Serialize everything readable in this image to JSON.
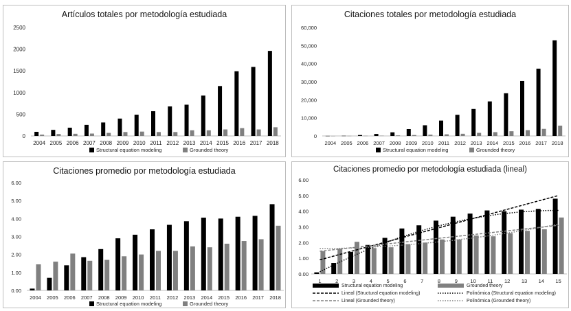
{
  "chart_data": [
    {
      "type": "bar",
      "title": "Artículos totales por metodología estudiada",
      "categories": [
        "2004",
        "2005",
        "2006",
        "2007",
        "2008",
        "2009",
        "2010",
        "2011",
        "2012",
        "2013",
        "2014",
        "2015",
        "2016",
        "2017",
        "2018"
      ],
      "series": [
        {
          "name": "Structural equation modeling",
          "color": "#000000",
          "values": [
            95,
            140,
            190,
            255,
            310,
            400,
            490,
            570,
            680,
            720,
            930,
            1150,
            1490,
            1590,
            1960
          ]
        },
        {
          "name": "Grounded theory",
          "color": "#808080",
          "values": [
            30,
            45,
            50,
            55,
            70,
            90,
            100,
            90,
            90,
            130,
            130,
            150,
            180,
            150,
            200
          ]
        }
      ],
      "ylim": [
        0,
        2500
      ],
      "yticks": [
        "0",
        "500",
        "1000",
        "1500",
        "2000",
        "2500"
      ],
      "legend": "bottom"
    },
    {
      "type": "bar",
      "title": "Citaciones totales por metodología estudiada",
      "categories": [
        "2004",
        "2005",
        "2006",
        "2007",
        "2008",
        "2009",
        "2010",
        "2011",
        "2012",
        "2013",
        "2014",
        "2015",
        "2016",
        "2017",
        "2018"
      ],
      "series": [
        {
          "name": "Structural equation modeling",
          "color": "#000000",
          "values": [
            50,
            100,
            500,
            1100,
            2000,
            3800,
            5900,
            8500,
            11700,
            14900,
            19100,
            23600,
            30400,
            37200,
            52900
          ]
        },
        {
          "name": "Grounded theory",
          "color": "#808080",
          "values": [
            30,
            70,
            100,
            150,
            300,
            500,
            700,
            900,
            1200,
            1700,
            2100,
            2600,
            3200,
            3900,
            5700
          ]
        }
      ],
      "ylim": [
        0,
        60000
      ],
      "yticks": [
        "0",
        "10,000",
        "20,000",
        "30,000",
        "40,000",
        "50,000",
        "60,000"
      ],
      "legend": "bottom"
    },
    {
      "type": "bar",
      "title": "Citaciones promedio por metodología estudiada",
      "categories": [
        "2004",
        "2005",
        "2006",
        "2007",
        "2008",
        "2009",
        "2010",
        "2011",
        "2012",
        "2013",
        "2014",
        "2015",
        "2016",
        "2017",
        "2018"
      ],
      "series": [
        {
          "name": "Structural equation modeling",
          "color": "#000000",
          "values": [
            0.1,
            0.7,
            1.4,
            1.85,
            2.3,
            2.9,
            3.1,
            3.4,
            3.65,
            3.85,
            4.05,
            4.0,
            4.1,
            4.15,
            4.8
          ]
        },
        {
          "name": "Grounded theory",
          "color": "#808080",
          "values": [
            1.45,
            1.6,
            2.05,
            1.65,
            1.7,
            1.9,
            2.0,
            2.2,
            2.2,
            2.45,
            2.4,
            2.6,
            2.75,
            2.85,
            3.6
          ]
        }
      ],
      "ylim": [
        0,
        6
      ],
      "yticks": [
        "0.00",
        "1.00",
        "2.00",
        "3.00",
        "4.00",
        "5.00",
        "6.00"
      ],
      "legend": "bottom"
    },
    {
      "type": "bar",
      "title": "Citaciones promedio por metodología estudiada (lineal)",
      "categories": [
        "1",
        "2",
        "3",
        "4",
        "5",
        "6",
        "7",
        "8",
        "9",
        "10",
        "11",
        "12",
        "13",
        "14",
        "15"
      ],
      "series": [
        {
          "name": "Structural equation modeling",
          "color": "#000000",
          "values": [
            0.1,
            0.7,
            1.4,
            1.85,
            2.3,
            2.9,
            3.1,
            3.4,
            3.65,
            3.85,
            4.05,
            4.0,
            4.1,
            4.15,
            4.8
          ]
        },
        {
          "name": "Grounded theory",
          "color": "#808080",
          "values": [
            1.45,
            1.6,
            2.05,
            1.65,
            1.7,
            1.9,
            2.0,
            2.2,
            2.2,
            2.45,
            2.4,
            2.6,
            2.75,
            2.85,
            3.6
          ]
        }
      ],
      "trendlines": [
        {
          "name": "Lineal (Structural equation modeling)",
          "kind": "linear",
          "color": "#000000",
          "style": "dashed",
          "start": 0.9,
          "end": 5.0
        },
        {
          "name": "Polinómica (Structural equation modeling)",
          "kind": "polynomial",
          "color": "#000000",
          "style": "dotted",
          "coeffs": [
            -0.45,
            0.6,
            -0.02
          ]
        },
        {
          "name": "Lineal (Grounded theory)",
          "kind": "linear",
          "color": "#808080",
          "style": "dashed",
          "start": 1.45,
          "end": 3.1
        },
        {
          "name": "Polinómica (Grounded theory)",
          "kind": "polynomial",
          "color": "#808080",
          "style": "dotted",
          "coeffs": [
            1.6,
            0.0,
            0.007
          ]
        }
      ],
      "ylim": [
        0,
        6
      ],
      "yticks": [
        "0.00",
        "1.00",
        "2.00",
        "3.00",
        "4.00",
        "5.00",
        "6.00"
      ],
      "legend": "bottom"
    }
  ]
}
